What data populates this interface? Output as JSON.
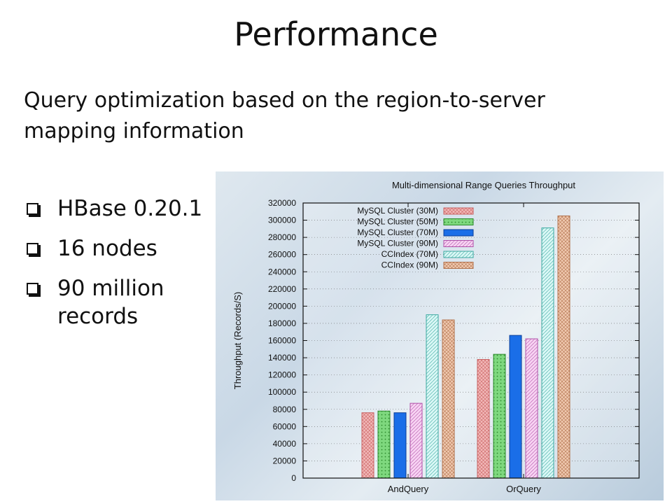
{
  "slide": {
    "title": "Performance",
    "subtitle": "Query optimization based on the region-to-server mapping information",
    "bullets": [
      "HBase 0.20.1",
      "16 nodes",
      "90 million records"
    ]
  },
  "chart_data": {
    "type": "bar",
    "title": "Multi-dimensional Range Queries Throughput",
    "xlabel": "",
    "ylabel": "Throughput (Records/S)",
    "ylim": [
      0,
      320000
    ],
    "yticks": [
      0,
      20000,
      40000,
      60000,
      80000,
      100000,
      120000,
      140000,
      160000,
      180000,
      200000,
      220000,
      240000,
      260000,
      280000,
      300000,
      320000
    ],
    "categories": [
      "AndQuery",
      "OrQuery"
    ],
    "grid": true,
    "legend_position": "top-left",
    "series": [
      {
        "name": "MySQL Cluster (30M)",
        "values": [
          76000,
          138000
        ],
        "color": "#f2b8b8",
        "stroke": "#c86060",
        "pattern": "crosshatch"
      },
      {
        "name": "MySQL Cluster (50M)",
        "values": [
          78000,
          144000
        ],
        "color": "#7ed87e",
        "stroke": "#2e8b2e",
        "pattern": "dots"
      },
      {
        "name": "MySQL Cluster (70M)",
        "values": [
          76000,
          166000
        ],
        "color": "#1a6ee8",
        "stroke": "#0b3f99",
        "pattern": "solid"
      },
      {
        "name": "MySQL Cluster (90M)",
        "values": [
          87000,
          162000
        ],
        "color": "#f7d2f2",
        "stroke": "#b050a8",
        "pattern": "diagonal"
      },
      {
        "name": "CCIndex (70M)",
        "values": [
          190000,
          291000
        ],
        "color": "#d9f7f5",
        "stroke": "#3aa8a0",
        "pattern": "diagonal"
      },
      {
        "name": "CCIndex (90M)",
        "values": [
          184000,
          305000
        ],
        "color": "#f0c9b0",
        "stroke": "#b0704a",
        "pattern": "crosshatch"
      }
    ]
  }
}
